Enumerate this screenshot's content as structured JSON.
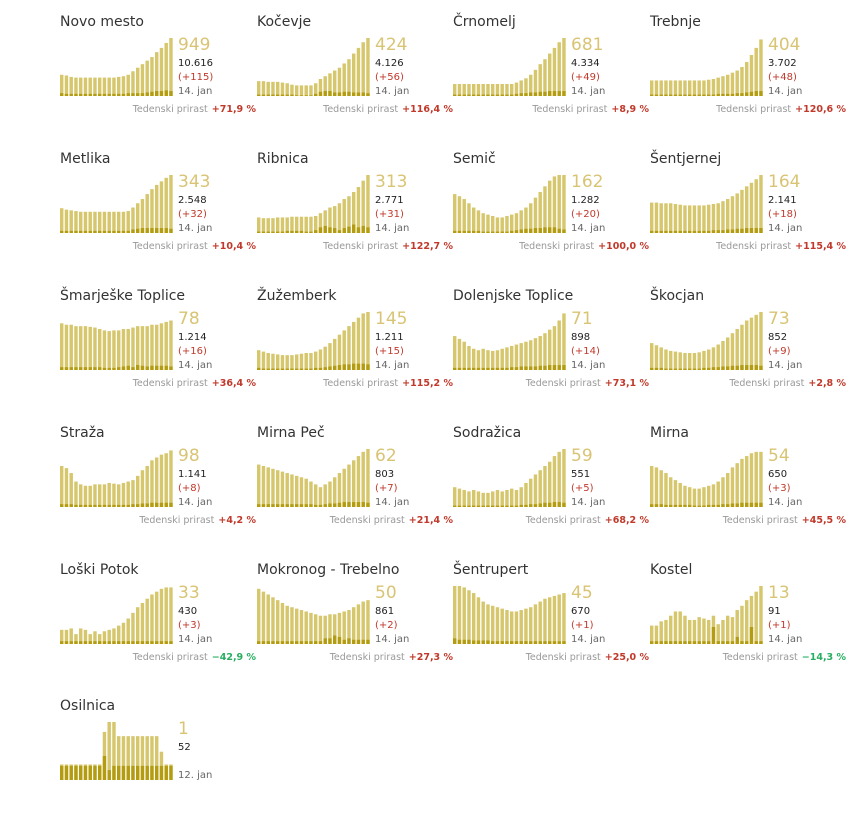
{
  "colors": {
    "bar_total": "#d6c66c",
    "bar_new": "#b49c10",
    "big_number": "#d9c474",
    "trend_up": "#c0392b",
    "trend_down": "#27ae60",
    "label": "#999999"
  },
  "trend_label": "Tedenski prirast",
  "chart_data": [
    {
      "type": "bar",
      "title": "Novo mesto",
      "active": "949",
      "total": "10.616",
      "delta": "(+115)",
      "date": "14. jan",
      "trend": "+71,9 %",
      "trend_dir": "up",
      "values": [
        30,
        29,
        27,
        26,
        26,
        26,
        26,
        26,
        26,
        26,
        26,
        26,
        27,
        28,
        30,
        35,
        40,
        45,
        50,
        55,
        62,
        68,
        75,
        82
      ],
      "new_values": [
        4,
        3,
        3,
        3,
        3,
        3,
        3,
        3,
        3,
        3,
        3,
        3,
        3,
        3,
        4,
        4,
        4,
        4,
        5,
        6,
        7,
        7,
        8,
        7
      ]
    },
    {
      "type": "bar",
      "title": "Kočevje",
      "active": "424",
      "total": "4.126",
      "delta": "(+56)",
      "date": "14. jan",
      "trend": "+116,4 %",
      "trend_dir": "up",
      "values": [
        21,
        21,
        20,
        20,
        20,
        19,
        18,
        16,
        15,
        15,
        15,
        15,
        18,
        24,
        28,
        32,
        36,
        40,
        46,
        52,
        60,
        68,
        76,
        82
      ],
      "new_values": [
        2,
        2,
        2,
        2,
        2,
        2,
        2,
        2,
        1,
        1,
        1,
        1,
        3,
        6,
        7,
        7,
        5,
        5,
        6,
        6,
        5,
        5,
        5,
        4
      ]
    },
    {
      "type": "bar",
      "title": "Črnomelj",
      "active": "681",
      "total": "4.334",
      "delta": "(+49)",
      "date": "14. jan",
      "trend": "+8,9 %",
      "trend_dir": "up",
      "values": [
        17,
        17,
        17,
        17,
        17,
        17,
        17,
        17,
        17,
        17,
        17,
        17,
        17,
        19,
        22,
        25,
        30,
        37,
        45,
        52,
        60,
        68,
        76,
        82
      ],
      "new_values": [
        2,
        2,
        2,
        2,
        2,
        2,
        2,
        2,
        2,
        2,
        2,
        2,
        2,
        3,
        4,
        4,
        5,
        5,
        6,
        6,
        7,
        7,
        7,
        7
      ]
    },
    {
      "type": "bar",
      "title": "Trebnje",
      "active": "404",
      "total": "3.702",
      "delta": "(+48)",
      "date": "14. jan",
      "trend": "+120,6 %",
      "trend_dir": "up",
      "values": [
        22,
        22,
        22,
        22,
        22,
        22,
        22,
        22,
        22,
        22,
        22,
        22,
        23,
        24,
        26,
        28,
        30,
        33,
        36,
        41,
        48,
        58,
        68,
        80
      ],
      "new_values": [
        2,
        2,
        2,
        2,
        2,
        2,
        2,
        2,
        2,
        2,
        2,
        2,
        2,
        2,
        3,
        3,
        3,
        3,
        4,
        4,
        5,
        6,
        7,
        7
      ]
    },
    {
      "type": "bar",
      "title": "Metlika",
      "active": "343",
      "total": "2.548",
      "delta": "(+32)",
      "date": "14. jan",
      "trend": "+10,4 %",
      "trend_dir": "up",
      "values": [
        35,
        33,
        32,
        31,
        30,
        30,
        30,
        30,
        30,
        30,
        30,
        30,
        30,
        30,
        31,
        36,
        42,
        48,
        55,
        62,
        68,
        73,
        78,
        82
      ],
      "new_values": [
        3,
        3,
        3,
        3,
        3,
        3,
        3,
        3,
        3,
        3,
        3,
        3,
        3,
        3,
        3,
        5,
        6,
        7,
        7,
        7,
        7,
        7,
        7,
        6
      ]
    },
    {
      "type": "bar",
      "title": "Ribnica",
      "active": "313",
      "total": "2.771",
      "delta": "(+31)",
      "date": "14. jan",
      "trend": "+122,7 %",
      "trend_dir": "up",
      "values": [
        22,
        21,
        21,
        21,
        22,
        22,
        22,
        23,
        23,
        23,
        23,
        23,
        24,
        28,
        32,
        36,
        38,
        42,
        48,
        52,
        58,
        65,
        74,
        82
      ],
      "new_values": [
        2,
        2,
        2,
        2,
        2,
        2,
        3,
        3,
        3,
        3,
        2,
        2,
        4,
        8,
        10,
        8,
        7,
        4,
        7,
        9,
        12,
        8,
        10,
        8
      ]
    },
    {
      "type": "bar",
      "title": "Semič",
      "active": "162",
      "total": "1.282",
      "delta": "(+20)",
      "date": "14. jan",
      "trend": "+100,0 %",
      "trend_dir": "up",
      "values": [
        55,
        52,
        48,
        42,
        36,
        32,
        28,
        26,
        24,
        22,
        22,
        24,
        26,
        28,
        32,
        36,
        42,
        50,
        58,
        66,
        74,
        80,
        82,
        82
      ],
      "new_values": [
        3,
        3,
        3,
        3,
        3,
        3,
        2,
        2,
        2,
        2,
        2,
        2,
        3,
        4,
        5,
        6,
        6,
        7,
        7,
        8,
        8,
        8,
        6,
        5
      ]
    },
    {
      "type": "bar",
      "title": "Šentjernej",
      "active": "164",
      "total": "2.141",
      "delta": "(+18)",
      "date": "14. jan",
      "trend": "+115,4 %",
      "trend_dir": "up",
      "values": [
        43,
        43,
        42,
        42,
        42,
        41,
        40,
        39,
        39,
        39,
        39,
        39,
        40,
        41,
        42,
        45,
        48,
        52,
        56,
        61,
        66,
        71,
        76,
        82
      ],
      "new_values": [
        3,
        3,
        3,
        3,
        3,
        3,
        3,
        3,
        3,
        3,
        3,
        3,
        3,
        4,
        4,
        4,
        5,
        5,
        6,
        6,
        7,
        7,
        7,
        7
      ]
    },
    {
      "type": "bar",
      "title": "Šmarješke Toplice",
      "active": "78",
      "total": "1.214",
      "delta": "(+16)",
      "date": "14. jan",
      "trend": "+36,4 %",
      "trend_dir": "up",
      "values": [
        66,
        64,
        64,
        62,
        62,
        62,
        61,
        60,
        58,
        56,
        55,
        56,
        56,
        58,
        58,
        60,
        62,
        62,
        62,
        64,
        64,
        66,
        68,
        70
      ],
      "new_values": [
        4,
        4,
        4,
        4,
        4,
        4,
        4,
        4,
        4,
        3,
        3,
        3,
        4,
        5,
        6,
        4,
        7,
        6,
        5,
        6,
        6,
        6,
        6,
        5
      ]
    },
    {
      "type": "bar",
      "title": "Žužemberk",
      "active": "145",
      "total": "1.211",
      "delta": "(+15)",
      "date": "14. jan",
      "trend": "+115,2 %",
      "trend_dir": "up",
      "values": [
        28,
        26,
        24,
        23,
        22,
        21,
        21,
        21,
        22,
        23,
        24,
        24,
        26,
        29,
        33,
        38,
        44,
        50,
        56,
        62,
        68,
        74,
        80,
        82
      ],
      "new_values": [
        3,
        2,
        2,
        2,
        2,
        2,
        2,
        2,
        2,
        2,
        2,
        2,
        3,
        3,
        4,
        5,
        6,
        7,
        8,
        8,
        9,
        9,
        9,
        8
      ]
    },
    {
      "type": "bar",
      "title": "Dolenjske Toplice",
      "active": "71",
      "total": "898",
      "delta": "(+14)",
      "date": "14. jan",
      "trend": "+73,1 %",
      "trend_dir": "up",
      "values": [
        48,
        44,
        40,
        34,
        30,
        28,
        30,
        28,
        27,
        28,
        30,
        32,
        34,
        36,
        38,
        40,
        42,
        45,
        48,
        52,
        57,
        62,
        70,
        80
      ],
      "new_values": [
        3,
        3,
        3,
        3,
        3,
        3,
        3,
        3,
        3,
        3,
        3,
        3,
        4,
        4,
        5,
        5,
        5,
        5,
        6,
        6,
        7,
        7,
        7,
        7
      ]
    },
    {
      "type": "bar",
      "title": "Škocjan",
      "active": "73",
      "total": "852",
      "delta": "(+9)",
      "date": "14. jan",
      "trend": "+2,8 %",
      "trend_dir": "up",
      "values": [
        38,
        35,
        32,
        29,
        27,
        26,
        25,
        24,
        24,
        24,
        25,
        27,
        29,
        32,
        36,
        41,
        46,
        52,
        58,
        64,
        70,
        74,
        78,
        82
      ],
      "new_values": [
        3,
        3,
        3,
        2,
        2,
        2,
        2,
        2,
        2,
        2,
        2,
        3,
        3,
        4,
        4,
        5,
        5,
        6,
        6,
        7,
        7,
        7,
        7,
        6
      ]
    },
    {
      "type": "bar",
      "title": "Straža",
      "active": "98",
      "total": "1.141",
      "delta": "(+8)",
      "date": "14. jan",
      "trend": "+4,2 %",
      "trend_dir": "up",
      "values": [
        58,
        55,
        48,
        36,
        32,
        30,
        30,
        32,
        32,
        32,
        34,
        33,
        32,
        34,
        36,
        38,
        44,
        52,
        58,
        66,
        70,
        74,
        76,
        80
      ],
      "new_values": [
        4,
        4,
        4,
        3,
        3,
        3,
        3,
        3,
        3,
        3,
        3,
        3,
        3,
        3,
        3,
        4,
        4,
        5,
        5,
        6,
        6,
        6,
        6,
        6
      ]
    },
    {
      "type": "bar",
      "title": "Mirna Peč",
      "active": "62",
      "total": "803",
      "delta": "(+7)",
      "date": "14. jan",
      "trend": "+21,4 %",
      "trend_dir": "up",
      "values": [
        60,
        58,
        56,
        54,
        52,
        50,
        48,
        46,
        44,
        42,
        40,
        36,
        32,
        28,
        32,
        36,
        42,
        48,
        54,
        60,
        66,
        72,
        78,
        82
      ],
      "new_values": [
        4,
        4,
        4,
        4,
        4,
        4,
        4,
        4,
        4,
        4,
        4,
        4,
        3,
        3,
        4,
        5,
        5,
        6,
        7,
        7,
        7,
        7,
        7,
        6
      ]
    },
    {
      "type": "bar",
      "title": "Sodražica",
      "active": "59",
      "total": "551",
      "delta": "(+5)",
      "date": "14. jan",
      "trend": "+68,2 %",
      "trend_dir": "up",
      "values": [
        28,
        26,
        24,
        22,
        24,
        22,
        20,
        20,
        22,
        24,
        22,
        24,
        26,
        24,
        28,
        34,
        40,
        46,
        52,
        58,
        64,
        72,
        78,
        82
      ],
      "new_values": [
        2,
        2,
        2,
        2,
        2,
        2,
        2,
        2,
        2,
        2,
        2,
        2,
        2,
        2,
        3,
        3,
        4,
        4,
        5,
        6,
        6,
        7,
        7,
        6
      ]
    },
    {
      "type": "bar",
      "title": "Mirna",
      "active": "54",
      "total": "650",
      "delta": "(+3)",
      "date": "14. jan",
      "trend": "+45,5 %",
      "trend_dir": "up",
      "values": [
        58,
        56,
        52,
        48,
        42,
        38,
        34,
        30,
        28,
        26,
        26,
        28,
        30,
        32,
        36,
        42,
        48,
        56,
        62,
        68,
        72,
        76,
        78,
        78
      ],
      "new_values": [
        4,
        4,
        4,
        3,
        3,
        3,
        3,
        3,
        3,
        2,
        2,
        2,
        3,
        3,
        3,
        4,
        4,
        5,
        5,
        6,
        6,
        6,
        6,
        6
      ]
    },
    {
      "type": "bar",
      "title": "Loški Potok",
      "active": "33",
      "total": "430",
      "delta": "(+3)",
      "date": "14. jan",
      "trend": "−42,9 %",
      "trend_dir": "down",
      "values": [
        20,
        20,
        22,
        14,
        22,
        20,
        14,
        18,
        14,
        18,
        20,
        22,
        26,
        30,
        36,
        44,
        52,
        58,
        64,
        70,
        74,
        78,
        80,
        80
      ],
      "new_values": [
        4,
        4,
        4,
        4,
        4,
        4,
        4,
        4,
        4,
        4,
        4,
        4,
        4,
        4,
        4,
        4,
        4,
        4,
        4,
        4,
        4,
        4,
        4,
        4
      ]
    },
    {
      "type": "bar",
      "title": "Mokronog - Trebelno",
      "active": "50",
      "total": "861",
      "delta": "(+2)",
      "date": "14. jan",
      "trend": "+27,3 %",
      "trend_dir": "up",
      "values": [
        78,
        74,
        70,
        66,
        62,
        58,
        54,
        52,
        50,
        48,
        46,
        44,
        42,
        40,
        40,
        42,
        42,
        44,
        46,
        48,
        52,
        56,
        60,
        62
      ],
      "new_values": [
        4,
        4,
        4,
        4,
        4,
        4,
        4,
        4,
        4,
        4,
        4,
        4,
        4,
        4,
        8,
        8,
        12,
        10,
        6,
        8,
        6,
        6,
        6,
        6
      ]
    },
    {
      "type": "bar",
      "title": "Šentrupert",
      "active": "45",
      "total": "670",
      "delta": "(+1)",
      "date": "14. jan",
      "trend": "+25,0 %",
      "trend_dir": "up",
      "values": [
        82,
        82,
        80,
        76,
        72,
        66,
        60,
        56,
        54,
        52,
        50,
        48,
        46,
        46,
        48,
        50,
        52,
        56,
        60,
        64,
        66,
        68,
        70,
        72
      ],
      "new_values": [
        8,
        6,
        6,
        6,
        5,
        5,
        5,
        5,
        4,
        4,
        4,
        4,
        4,
        4,
        4,
        4,
        4,
        4,
        4,
        4,
        4,
        4,
        4,
        4
      ]
    },
    {
      "type": "bar",
      "title": "Kostel",
      "active": "13",
      "total": "91",
      "delta": "(+1)",
      "date": "14. jan",
      "trend": "−14,3 %",
      "trend_dir": "down",
      "values": [
        26,
        26,
        32,
        34,
        40,
        46,
        46,
        40,
        34,
        34,
        38,
        36,
        34,
        40,
        28,
        34,
        40,
        38,
        48,
        54,
        62,
        68,
        74,
        82
      ],
      "new_values": [
        4,
        4,
        4,
        4,
        4,
        4,
        4,
        4,
        4,
        4,
        4,
        4,
        4,
        24,
        4,
        4,
        4,
        4,
        10,
        4,
        4,
        24,
        4,
        4
      ]
    },
    {
      "type": "bar",
      "title": "Osilnica",
      "active": "1",
      "total": "52",
      "delta": "",
      "date": "12. jan",
      "trend": "",
      "trend_dir": "",
      "values": [
        22,
        22,
        22,
        22,
        22,
        22,
        22,
        22,
        22,
        68,
        82,
        82,
        62,
        62,
        62,
        62,
        62,
        62,
        62,
        62,
        62,
        40,
        22,
        22
      ],
      "new_values": [
        20,
        20,
        20,
        20,
        20,
        20,
        20,
        20,
        20,
        34,
        14,
        20,
        20,
        20,
        20,
        20,
        20,
        20,
        20,
        20,
        20,
        20,
        20,
        20
      ]
    }
  ]
}
